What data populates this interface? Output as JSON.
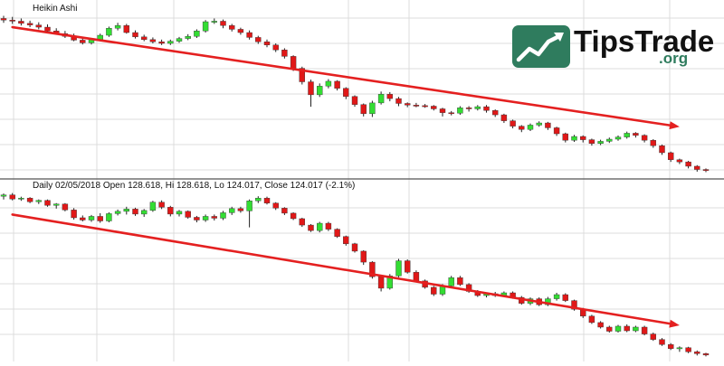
{
  "colors": {
    "up": "#33dd33",
    "down": "#e01818",
    "wick": "#222222",
    "trend": "#e42020",
    "grid": "#dcdcdc",
    "divider": "#555555",
    "logo_green": "#2f7c5e",
    "logo_text": "#111111"
  },
  "watermark": {
    "brand": "TipsTrade",
    "suffix": ".org"
  },
  "chart_data": [
    {
      "type": "candlestick",
      "title": "Heikin Ashi",
      "trend_arrow": {
        "from": [
          1,
          133.2
        ],
        "to": [
          77,
          114.8
        ]
      },
      "ohlc": [
        [
          134.8,
          135.3,
          134.0,
          134.5
        ],
        [
          134.5,
          135.1,
          133.8,
          134.3
        ],
        [
          134.3,
          134.8,
          133.5,
          133.9
        ],
        [
          133.9,
          134.4,
          133.2,
          133.6
        ],
        [
          133.6,
          134.1,
          132.8,
          133.2
        ],
        [
          133.2,
          133.7,
          132.2,
          132.5
        ],
        [
          132.5,
          133.0,
          131.8,
          132.0
        ],
        [
          132.0,
          132.5,
          131.2,
          131.5
        ],
        [
          131.5,
          132.0,
          130.6,
          130.8
        ],
        [
          130.8,
          131.4,
          130.0,
          130.3
        ],
        [
          130.3,
          131.2,
          130.0,
          130.9
        ],
        [
          130.9,
          132.0,
          130.6,
          131.7
        ],
        [
          131.7,
          133.3,
          131.4,
          133.0
        ],
        [
          133.0,
          134.0,
          132.6,
          133.5
        ],
        [
          133.5,
          133.8,
          132.0,
          132.2
        ],
        [
          132.2,
          132.6,
          131.1,
          131.4
        ],
        [
          131.4,
          131.8,
          130.6,
          130.9
        ],
        [
          130.9,
          131.3,
          130.2,
          130.5
        ],
        [
          130.5,
          130.9,
          129.9,
          130.2
        ],
        [
          130.2,
          130.9,
          129.9,
          130.6
        ],
        [
          130.6,
          131.4,
          130.3,
          131.1
        ],
        [
          131.1,
          131.9,
          130.8,
          131.5
        ],
        [
          131.5,
          132.8,
          131.2,
          132.5
        ],
        [
          132.5,
          134.5,
          132.2,
          134.2
        ],
        [
          134.2,
          134.8,
          133.8,
          134.3
        ],
        [
          134.3,
          134.6,
          133.0,
          133.5
        ],
        [
          133.5,
          133.8,
          132.4,
          132.8
        ],
        [
          132.8,
          133.1,
          131.8,
          132.2
        ],
        [
          132.2,
          132.6,
          130.9,
          131.3
        ],
        [
          131.3,
          131.6,
          130.1,
          130.5
        ],
        [
          130.5,
          130.9,
          129.5,
          129.9
        ],
        [
          129.9,
          130.2,
          128.6,
          129.0
        ],
        [
          129.0,
          129.3,
          127.4,
          127.8
        ],
        [
          127.8,
          128.0,
          125.1,
          125.6
        ],
        [
          125.6,
          125.9,
          122.6,
          123.1
        ],
        [
          123.1,
          123.5,
          118.5,
          120.7
        ],
        [
          120.7,
          122.8,
          120.3,
          122.3
        ],
        [
          122.3,
          123.6,
          121.9,
          123.2
        ],
        [
          123.2,
          123.4,
          121.5,
          121.9
        ],
        [
          121.9,
          122.1,
          119.9,
          120.4
        ],
        [
          120.4,
          120.6,
          118.5,
          118.9
        ],
        [
          118.9,
          119.1,
          116.7,
          117.2
        ],
        [
          117.2,
          119.6,
          116.6,
          119.2
        ],
        [
          119.2,
          121.3,
          118.9,
          120.8
        ],
        [
          120.8,
          121.2,
          119.5,
          120.0
        ],
        [
          120.0,
          120.3,
          118.6,
          119.1
        ],
        [
          119.1,
          119.3,
          118.4,
          118.8
        ],
        [
          118.8,
          119.2,
          118.4,
          118.7
        ],
        [
          118.7,
          119.0,
          118.3,
          118.6
        ],
        [
          118.6,
          118.8,
          117.8,
          118.1
        ],
        [
          118.1,
          118.3,
          116.7,
          117.4
        ],
        [
          117.4,
          117.7,
          116.9,
          117.3
        ],
        [
          117.3,
          118.6,
          117.0,
          118.3
        ],
        [
          118.3,
          118.6,
          117.6,
          118.1
        ],
        [
          118.1,
          118.8,
          117.8,
          118.5
        ],
        [
          118.5,
          118.8,
          117.4,
          117.8
        ],
        [
          117.8,
          118.0,
          116.6,
          117.0
        ],
        [
          117.0,
          117.2,
          115.5,
          115.9
        ],
        [
          115.9,
          116.1,
          114.5,
          114.9
        ],
        [
          114.9,
          115.1,
          113.8,
          114.3
        ],
        [
          114.3,
          115.4,
          114.0,
          115.1
        ],
        [
          115.1,
          115.8,
          114.8,
          115.5
        ],
        [
          115.5,
          115.7,
          114.2,
          114.6
        ],
        [
          114.6,
          114.8,
          113.1,
          113.5
        ],
        [
          113.5,
          113.7,
          111.9,
          112.3
        ],
        [
          112.3,
          113.3,
          112.0,
          113.0
        ],
        [
          113.0,
          113.2,
          111.9,
          112.4
        ],
        [
          112.4,
          112.6,
          111.3,
          111.7
        ],
        [
          111.7,
          112.4,
          111.4,
          112.1
        ],
        [
          112.1,
          112.8,
          111.8,
          112.5
        ],
        [
          112.5,
          113.2,
          112.2,
          112.9
        ],
        [
          112.9,
          113.9,
          112.6,
          113.6
        ],
        [
          113.6,
          113.8,
          112.8,
          113.2
        ],
        [
          113.2,
          113.4,
          111.9,
          112.3
        ],
        [
          112.3,
          112.5,
          110.9,
          111.3
        ],
        [
          111.3,
          111.5,
          109.6,
          110.0
        ],
        [
          110.0,
          110.2,
          108.3,
          108.7
        ],
        [
          108.7,
          108.9,
          107.9,
          108.3
        ],
        [
          108.3,
          108.5,
          107.1,
          107.5
        ],
        [
          107.5,
          107.7,
          106.5,
          106.9
        ],
        [
          106.9,
          107.1,
          106.4,
          106.8
        ]
      ]
    },
    {
      "type": "candlestick",
      "title": "Daily 02/05/2018 Open 128.618, Hi 128.618, Lo 124.017, Close 124.017 (-2.1%)",
      "trend_arrow": {
        "from": [
          1,
          130.6
        ],
        "to": [
          77,
          106.4
        ]
      },
      "ohlc": [
        [
          134.6,
          135.2,
          133.9,
          134.9
        ],
        [
          134.9,
          135.3,
          133.7,
          134.0
        ],
        [
          134.0,
          134.5,
          133.6,
          134.2
        ],
        [
          134.2,
          134.4,
          133.1,
          133.4
        ],
        [
          133.4,
          133.9,
          132.9,
          133.7
        ],
        [
          133.7,
          133.9,
          132.3,
          132.6
        ],
        [
          132.6,
          133.1,
          131.9,
          132.9
        ],
        [
          132.9,
          133.1,
          131.3,
          131.6
        ],
        [
          131.6,
          132.0,
          129.5,
          129.9
        ],
        [
          129.9,
          130.4,
          129.1,
          129.4
        ],
        [
          129.4,
          130.5,
          129.0,
          130.2
        ],
        [
          130.2,
          130.9,
          128.8,
          129.2
        ],
        [
          129.2,
          131.1,
          128.9,
          130.8
        ],
        [
          130.8,
          131.7,
          130.4,
          131.3
        ],
        [
          131.3,
          132.3,
          130.6,
          131.8
        ],
        [
          131.8,
          132.1,
          130.3,
          130.7
        ],
        [
          130.7,
          131.8,
          130.1,
          131.5
        ],
        [
          131.5,
          133.6,
          131.2,
          133.3
        ],
        [
          133.3,
          133.7,
          131.8,
          132.2
        ],
        [
          132.2,
          132.5,
          130.2,
          130.7
        ],
        [
          130.7,
          131.6,
          130.2,
          131.3
        ],
        [
          131.3,
          131.5,
          129.7,
          130.0
        ],
        [
          130.0,
          130.3,
          128.9,
          129.4
        ],
        [
          129.4,
          130.6,
          129.0,
          130.2
        ],
        [
          130.2,
          130.6,
          129.3,
          129.8
        ],
        [
          129.8,
          131.4,
          129.4,
          131.0
        ],
        [
          131.0,
          132.3,
          130.5,
          131.9
        ],
        [
          131.9,
          132.3,
          131.0,
          131.4
        ],
        [
          131.4,
          133.9,
          127.8,
          133.6
        ],
        [
          133.6,
          134.6,
          133.1,
          134.2
        ],
        [
          134.2,
          134.5,
          132.8,
          133.1
        ],
        [
          133.1,
          133.3,
          131.6,
          132.0
        ],
        [
          132.0,
          132.2,
          130.5,
          130.9
        ],
        [
          130.9,
          131.1,
          129.4,
          129.7
        ],
        [
          129.7,
          129.9,
          127.9,
          128.3
        ],
        [
          128.3,
          128.5,
          126.8,
          127.1
        ],
        [
          127.1,
          129.0,
          126.7,
          128.7
        ],
        [
          128.7,
          129.0,
          127.0,
          127.4
        ],
        [
          127.4,
          127.6,
          125.5,
          125.8
        ],
        [
          125.8,
          126.0,
          123.8,
          124.2
        ],
        [
          124.2,
          124.4,
          122.3,
          122.6
        ],
        [
          122.6,
          122.8,
          119.6,
          120.2
        ],
        [
          120.2,
          120.4,
          116.6,
          117.0
        ],
        [
          117.0,
          117.4,
          113.8,
          114.5
        ],
        [
          114.5,
          117.6,
          114.2,
          117.2
        ],
        [
          117.2,
          120.9,
          116.9,
          120.5
        ],
        [
          120.5,
          120.8,
          117.7,
          118.0
        ],
        [
          118.0,
          118.4,
          115.8,
          116.1
        ],
        [
          116.1,
          116.4,
          114.4,
          114.7
        ],
        [
          114.7,
          115.0,
          112.8,
          113.2
        ],
        [
          113.2,
          115.4,
          112.8,
          115.0
        ],
        [
          115.0,
          117.2,
          114.7,
          116.8
        ],
        [
          116.8,
          117.2,
          115.0,
          115.3
        ],
        [
          115.3,
          115.6,
          113.5,
          113.8
        ],
        [
          113.8,
          114.1,
          112.6,
          112.9
        ],
        [
          112.9,
          113.6,
          112.5,
          113.3
        ],
        [
          113.3,
          113.7,
          112.6,
          112.9
        ],
        [
          112.9,
          113.8,
          112.6,
          113.5
        ],
        [
          113.5,
          113.8,
          112.2,
          112.5
        ],
        [
          112.5,
          112.8,
          110.9,
          111.2
        ],
        [
          111.2,
          112.5,
          110.8,
          112.2
        ],
        [
          112.2,
          112.5,
          110.6,
          110.9
        ],
        [
          110.9,
          112.6,
          110.6,
          112.2
        ],
        [
          112.2,
          113.5,
          111.8,
          113.1
        ],
        [
          113.1,
          113.4,
          111.5,
          111.8
        ],
        [
          111.8,
          112.0,
          109.6,
          109.9
        ],
        [
          109.9,
          110.2,
          108.0,
          108.4
        ],
        [
          108.4,
          108.7,
          106.7,
          107.0
        ],
        [
          107.0,
          107.3,
          105.7,
          106.0
        ],
        [
          106.0,
          106.3,
          104.8,
          105.1
        ],
        [
          105.1,
          106.5,
          104.8,
          106.2
        ],
        [
          106.2,
          106.6,
          104.9,
          105.2
        ],
        [
          105.2,
          106.3,
          104.9,
          106.0
        ],
        [
          106.0,
          106.3,
          104.2,
          104.5
        ],
        [
          104.5,
          104.8,
          103.0,
          103.3
        ],
        [
          103.3,
          103.6,
          101.9,
          102.2
        ],
        [
          102.2,
          102.5,
          101.0,
          101.3
        ],
        [
          101.3,
          101.8,
          100.6,
          101.5
        ],
        [
          101.5,
          101.7,
          100.3,
          100.6
        ],
        [
          100.6,
          100.9,
          99.8,
          100.2
        ],
        [
          100.2,
          100.4,
          99.6,
          99.9
        ]
      ]
    }
  ]
}
